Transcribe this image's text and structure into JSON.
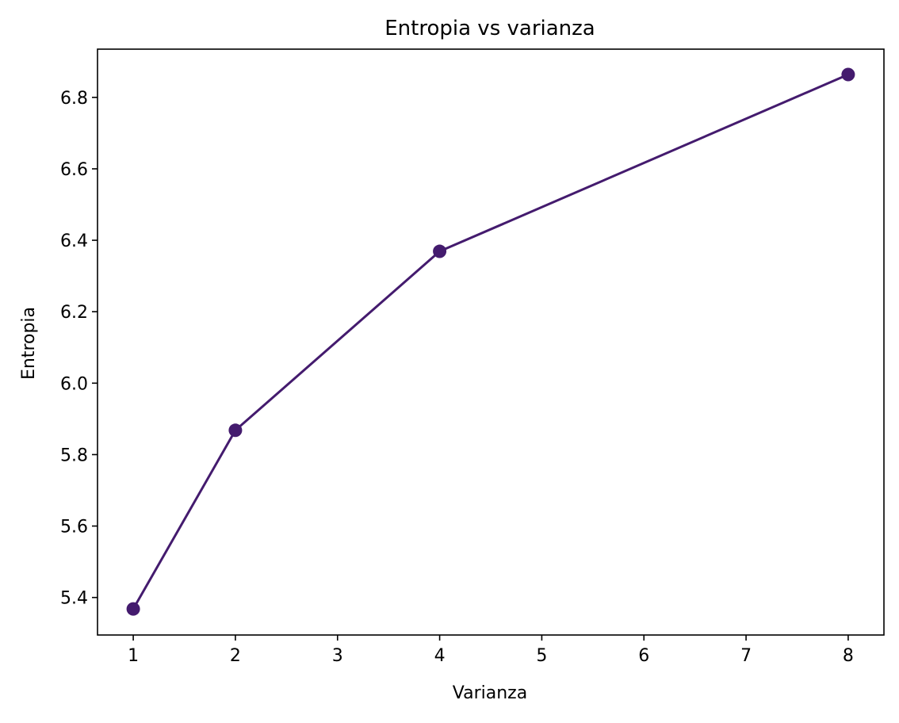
{
  "chart_data": {
    "type": "line",
    "title": "Entropia vs varianza",
    "xlabel": "Varianza",
    "ylabel": "Entropia",
    "xlim": [
      0.65,
      8.35
    ],
    "ylim": [
      5.295,
      6.935
    ],
    "x_ticks": [
      1,
      2,
      3,
      4,
      5,
      6,
      7,
      8
    ],
    "x_tick_labels": [
      "1",
      "2",
      "3",
      "4",
      "5",
      "6",
      "7",
      "8"
    ],
    "y_ticks": [
      5.4,
      5.6,
      5.8,
      6.0,
      6.2,
      6.4,
      6.6,
      6.8
    ],
    "y_tick_labels": [
      "5.4",
      "5.6",
      "5.8",
      "6.0",
      "6.2",
      "6.4",
      "6.6",
      "6.8"
    ],
    "grid": false,
    "series": [
      {
        "x": [
          1,
          2,
          4,
          8
        ],
        "values": [
          5.368,
          5.868,
          6.369,
          6.864
        ],
        "color": "#441b6e",
        "marker": "circle"
      }
    ]
  }
}
